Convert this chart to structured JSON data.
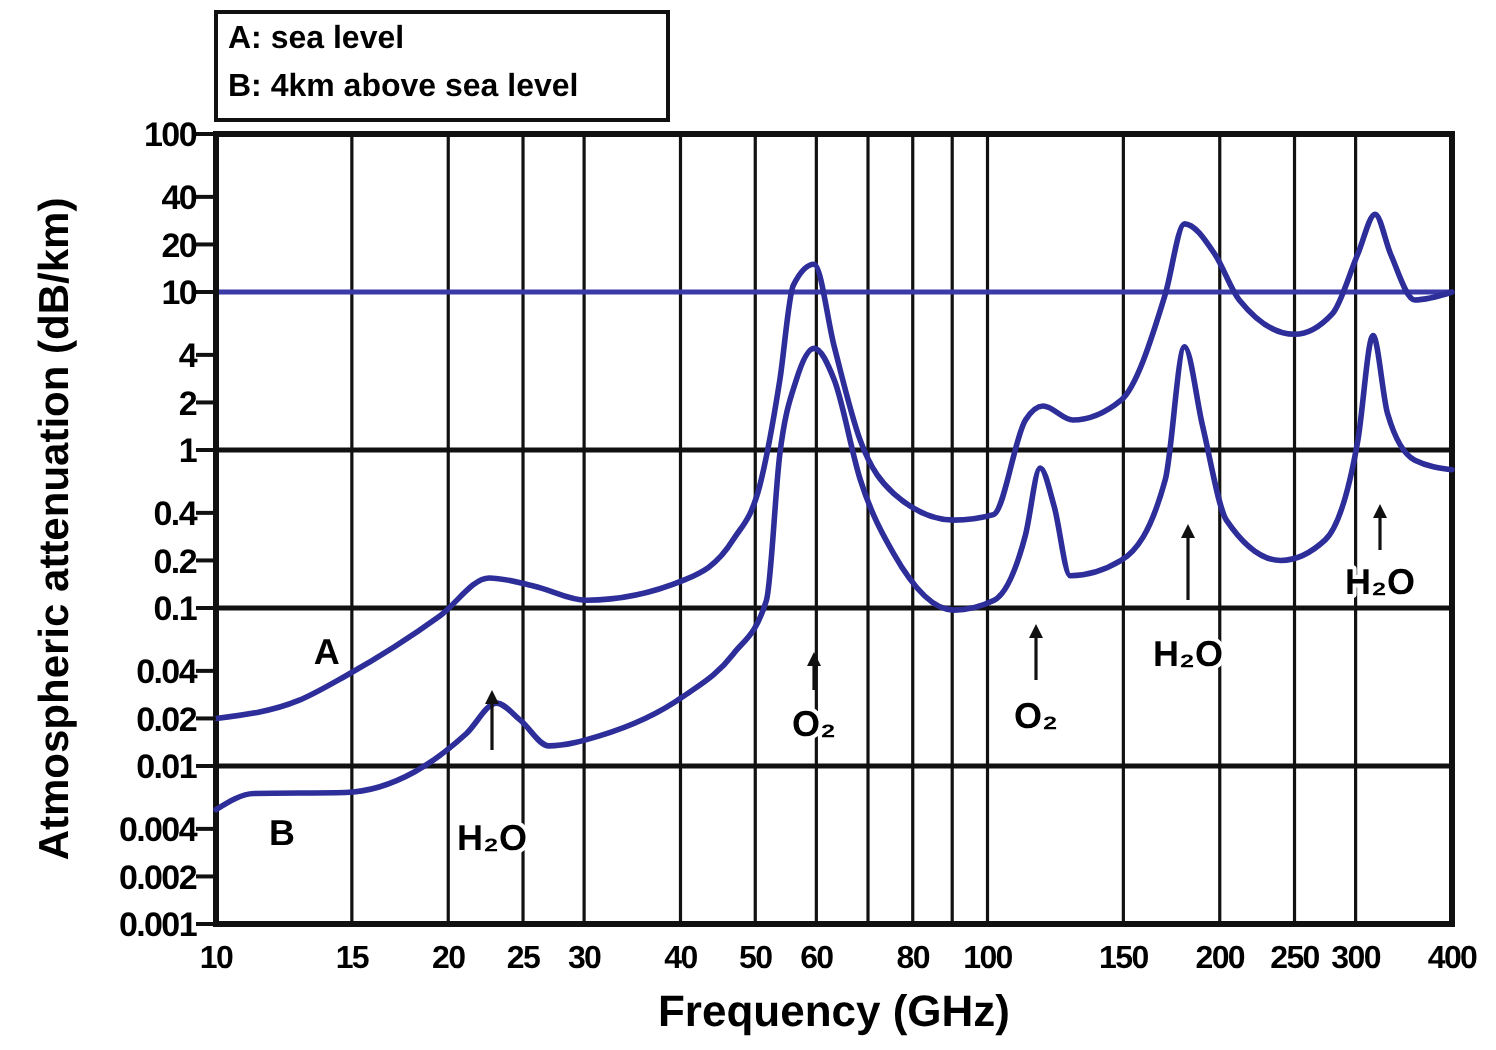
{
  "chart_data": {
    "type": "line",
    "xlabel": "Frequency (GHz)",
    "ylabel": "Atmospheric attenuation (dB/km)",
    "log": "xy",
    "grid": "x",
    "xlim": [
      10,
      400
    ],
    "ylim": [
      0.001,
      100
    ],
    "xticks": [
      10,
      15,
      20,
      25,
      30,
      40,
      50,
      60,
      {
        "value": 70,
        "label": null
      },
      80,
      {
        "value": 90,
        "label": null
      },
      100,
      150,
      200,
      250,
      300,
      400
    ],
    "yticks": [
      0.001,
      0.002,
      0.004,
      0.01,
      0.02,
      0.04,
      0.1,
      0.2,
      0.4,
      1,
      2,
      4,
      10,
      20,
      40,
      100
    ],
    "series": [
      {
        "name": "A",
        "color": "#2e2e9a",
        "x": [
          10,
          12.8,
          14.7,
          19.5,
          22.6,
          25.8,
          30.2,
          40.4,
          46.8,
          50.7,
          53.8,
          56,
          59.6,
          63.3,
          68.4,
          75.6,
          90.4,
          101.8,
          112,
          118,
          129,
          149,
          170,
          180,
          197,
          212,
          250,
          280,
          302,
          318,
          333,
          358,
          400
        ],
        "values": [
          0.02,
          0.026,
          0.037,
          0.089,
          0.155,
          0.138,
          0.112,
          0.15,
          0.27,
          0.6,
          2.77,
          11,
          15,
          4.5,
          1.15,
          0.53,
          0.36,
          0.39,
          1.55,
          1.9,
          1.55,
          2.07,
          9.7,
          27,
          17.4,
          8.9,
          5.4,
          7.3,
          17.4,
          31,
          17.4,
          8.9,
          10
        ]
      },
      {
        "name": "B",
        "color": "#2e2e9a",
        "x": [
          10,
          11.2,
          14.7,
          18.1,
          21.1,
          23.1,
          24.8,
          27,
          31.4,
          40.4,
          46.8,
          51.7,
          53.8,
          56.5,
          59.6,
          63.3,
          68.4,
          75.6,
          90.4,
          102,
          112,
          117,
          122,
          128,
          149,
          170,
          180,
          190,
          204,
          240,
          274,
          302,
          316,
          330,
          358,
          400
        ],
        "values": [
          0.0053,
          0.0067,
          0.0068,
          0.0092,
          0.016,
          0.025,
          0.0195,
          0.0134,
          0.0155,
          0.0277,
          0.051,
          0.112,
          0.94,
          2.77,
          4.4,
          2.77,
          0.65,
          0.22,
          0.097,
          0.112,
          0.29,
          0.77,
          0.44,
          0.16,
          0.2,
          0.65,
          4.5,
          1.42,
          0.36,
          0.2,
          0.27,
          1.15,
          5.3,
          1.7,
          0.86,
          0.75
        ]
      }
    ],
    "ref_lines": [
      {
        "axis": "y",
        "value": 10,
        "color": "#3a3aa8"
      },
      {
        "axis": "y",
        "value": 1
      },
      {
        "axis": "y",
        "value": 0.1
      },
      {
        "axis": "y",
        "value": 0.01
      }
    ],
    "annotations": [
      "A: sea level",
      "B: 4km above sea level",
      "H₂O",
      "O₂",
      "O₂",
      "H₂O",
      "H₂O"
    ]
  }
}
